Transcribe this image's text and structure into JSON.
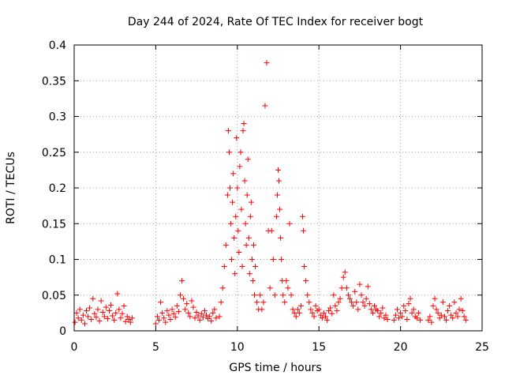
{
  "chart_data": {
    "type": "scatter",
    "title": "Day 244 of 2024, Rate Of TEC Index for receiver bogt",
    "xlabel": "GPS time / hours",
    "ylabel": "ROTI / TECUs",
    "xlim": [
      0,
      25
    ],
    "ylim": [
      0,
      0.4
    ],
    "grid": true,
    "marker": "+",
    "color": "#ff0000",
    "x_ticks": [
      "0",
      "5",
      "10",
      "15",
      "20",
      "25"
    ],
    "y_ticks": [
      "0",
      "0.05",
      "0.1",
      "0.15",
      "0.2",
      "0.25",
      "0.3",
      "0.35",
      "0.4"
    ],
    "x_tick_values": [
      0,
      5,
      10,
      15,
      20,
      25
    ],
    "y_tick_values": [
      0,
      0.05,
      0.1,
      0.15,
      0.2,
      0.25,
      0.3,
      0.35,
      0.4
    ],
    "series": [
      {
        "name": "ROTI",
        "points": [
          [
            0.05,
            0.012
          ],
          [
            0.15,
            0.025
          ],
          [
            0.25,
            0.018
          ],
          [
            0.35,
            0.03
          ],
          [
            0.45,
            0.015
          ],
          [
            0.55,
            0.022
          ],
          [
            0.65,
            0.01
          ],
          [
            0.75,
            0.028
          ],
          [
            0.85,
            0.02
          ],
          [
            0.95,
            0.032
          ],
          [
            1.05,
            0.016
          ],
          [
            1.15,
            0.045
          ],
          [
            1.25,
            0.024
          ],
          [
            1.35,
            0.019
          ],
          [
            1.45,
            0.03
          ],
          [
            1.55,
            0.014
          ],
          [
            1.65,
            0.042
          ],
          [
            1.75,
            0.026
          ],
          [
            1.85,
            0.02
          ],
          [
            1.95,
            0.033
          ],
          [
            2.05,
            0.017
          ],
          [
            2.15,
            0.028
          ],
          [
            2.25,
            0.036
          ],
          [
            2.35,
            0.021
          ],
          [
            2.45,
            0.015
          ],
          [
            2.55,
            0.025
          ],
          [
            2.65,
            0.052
          ],
          [
            2.75,
            0.03
          ],
          [
            2.85,
            0.018
          ],
          [
            2.95,
            0.024
          ],
          [
            3.05,
            0.035
          ],
          [
            3.15,
            0.013
          ],
          [
            3.25,
            0.02
          ],
          [
            3.35,
            0.016
          ],
          [
            3.45,
            0.012
          ],
          [
            3.55,
            0.018
          ],
          [
            5.0,
            0.01
          ],
          [
            5.1,
            0.02
          ],
          [
            5.2,
            0.015
          ],
          [
            5.3,
            0.04
          ],
          [
            5.4,
            0.025
          ],
          [
            5.5,
            0.018
          ],
          [
            5.6,
            0.012
          ],
          [
            5.7,
            0.028
          ],
          [
            5.8,
            0.022
          ],
          [
            5.9,
            0.016
          ],
          [
            6.0,
            0.03
          ],
          [
            6.1,
            0.024
          ],
          [
            6.2,
            0.019
          ],
          [
            6.3,
            0.035
          ],
          [
            6.4,
            0.027
          ],
          [
            6.5,
            0.05
          ],
          [
            6.6,
            0.07
          ],
          [
            6.7,
            0.045
          ],
          [
            6.8,
            0.03
          ],
          [
            6.9,
            0.038
          ],
          [
            7.0,
            0.025
          ],
          [
            7.1,
            0.02
          ],
          [
            7.2,
            0.042
          ],
          [
            7.3,
            0.033
          ],
          [
            7.4,
            0.018
          ],
          [
            7.5,
            0.026
          ],
          [
            7.6,
            0.021
          ],
          [
            7.7,
            0.015
          ],
          [
            7.8,
            0.024
          ],
          [
            7.9,
            0.019
          ],
          [
            8.0,
            0.028
          ],
          [
            8.1,
            0.022
          ],
          [
            8.2,
            0.017
          ],
          [
            8.3,
            0.02
          ],
          [
            8.4,
            0.014
          ],
          [
            8.5,
            0.025
          ],
          [
            8.6,
            0.03
          ],
          [
            8.7,
            0.018
          ],
          [
            8.9,
            0.02
          ],
          [
            9.0,
            0.04
          ],
          [
            9.1,
            0.06
          ],
          [
            9.2,
            0.09
          ],
          [
            9.3,
            0.12
          ],
          [
            9.4,
            0.19
          ],
          [
            9.45,
            0.28
          ],
          [
            9.5,
            0.25
          ],
          [
            9.55,
            0.2
          ],
          [
            9.6,
            0.15
          ],
          [
            9.65,
            0.1
          ],
          [
            9.7,
            0.18
          ],
          [
            9.75,
            0.22
          ],
          [
            9.8,
            0.13
          ],
          [
            9.85,
            0.08
          ],
          [
            9.9,
            0.16
          ],
          [
            9.95,
            0.27
          ],
          [
            10.0,
            0.2
          ],
          [
            10.05,
            0.14
          ],
          [
            10.1,
            0.11
          ],
          [
            10.15,
            0.23
          ],
          [
            10.2,
            0.25
          ],
          [
            10.25,
            0.17
          ],
          [
            10.3,
            0.09
          ],
          [
            10.35,
            0.28
          ],
          [
            10.4,
            0.29
          ],
          [
            10.45,
            0.21
          ],
          [
            10.5,
            0.15
          ],
          [
            10.55,
            0.12
          ],
          [
            10.6,
            0.19
          ],
          [
            10.65,
            0.24
          ],
          [
            10.7,
            0.13
          ],
          [
            10.75,
            0.08
          ],
          [
            10.8,
            0.16
          ],
          [
            10.85,
            0.18
          ],
          [
            10.9,
            0.1
          ],
          [
            10.95,
            0.07
          ],
          [
            11.0,
            0.12
          ],
          [
            11.05,
            0.05
          ],
          [
            11.1,
            0.09
          ],
          [
            11.2,
            0.04
          ],
          [
            11.3,
            0.03
          ],
          [
            11.4,
            0.05
          ],
          [
            11.5,
            0.03
          ],
          [
            11.6,
            0.04
          ],
          [
            11.7,
            0.315
          ],
          [
            11.8,
            0.375
          ],
          [
            11.9,
            0.14
          ],
          [
            12.0,
            0.06
          ],
          [
            12.1,
            0.14
          ],
          [
            12.2,
            0.1
          ],
          [
            12.3,
            0.05
          ],
          [
            12.4,
            0.16
          ],
          [
            12.45,
            0.19
          ],
          [
            12.5,
            0.225
          ],
          [
            12.55,
            0.21
          ],
          [
            12.6,
            0.17
          ],
          [
            12.65,
            0.13
          ],
          [
            12.7,
            0.1
          ],
          [
            12.75,
            0.07
          ],
          [
            12.8,
            0.05
          ],
          [
            12.9,
            0.04
          ],
          [
            13.0,
            0.07
          ],
          [
            13.1,
            0.06
          ],
          [
            13.2,
            0.15
          ],
          [
            13.3,
            0.05
          ],
          [
            13.4,
            0.03
          ],
          [
            13.5,
            0.025
          ],
          [
            13.6,
            0.02
          ],
          [
            13.7,
            0.03
          ],
          [
            13.8,
            0.025
          ],
          [
            13.9,
            0.035
          ],
          [
            14.0,
            0.16
          ],
          [
            14.05,
            0.14
          ],
          [
            14.1,
            0.09
          ],
          [
            14.2,
            0.07
          ],
          [
            14.3,
            0.05
          ],
          [
            14.4,
            0.04
          ],
          [
            14.5,
            0.03
          ],
          [
            14.6,
            0.025
          ],
          [
            14.7,
            0.02
          ],
          [
            14.8,
            0.035
          ],
          [
            14.9,
            0.028
          ],
          [
            15.0,
            0.03
          ],
          [
            15.1,
            0.022
          ],
          [
            15.2,
            0.018
          ],
          [
            15.3,
            0.025
          ],
          [
            15.4,
            0.02
          ],
          [
            15.5,
            0.015
          ],
          [
            15.6,
            0.028
          ],
          [
            15.7,
            0.032
          ],
          [
            15.8,
            0.024
          ],
          [
            15.9,
            0.05
          ],
          [
            16.0,
            0.035
          ],
          [
            16.1,
            0.028
          ],
          [
            16.2,
            0.04
          ],
          [
            16.3,
            0.045
          ],
          [
            16.4,
            0.06
          ],
          [
            16.5,
            0.075
          ],
          [
            16.6,
            0.082
          ],
          [
            16.7,
            0.06
          ],
          [
            16.8,
            0.05
          ],
          [
            16.9,
            0.045
          ],
          [
            17.0,
            0.04
          ],
          [
            17.1,
            0.035
          ],
          [
            17.2,
            0.055
          ],
          [
            17.3,
            0.04
          ],
          [
            17.4,
            0.03
          ],
          [
            17.5,
            0.065
          ],
          [
            17.6,
            0.05
          ],
          [
            17.7,
            0.04
          ],
          [
            17.8,
            0.035
          ],
          [
            17.9,
            0.045
          ],
          [
            18.0,
            0.062
          ],
          [
            18.1,
            0.038
          ],
          [
            18.2,
            0.03
          ],
          [
            18.3,
            0.025
          ],
          [
            18.4,
            0.035
          ],
          [
            18.5,
            0.03
          ],
          [
            18.6,
            0.028
          ],
          [
            18.7,
            0.02
          ],
          [
            18.8,
            0.025
          ],
          [
            18.9,
            0.032
          ],
          [
            19.0,
            0.018
          ],
          [
            19.1,
            0.022
          ],
          [
            19.2,
            0.016
          ],
          [
            19.6,
            0.015
          ],
          [
            19.7,
            0.022
          ],
          [
            19.8,
            0.03
          ],
          [
            19.9,
            0.018
          ],
          [
            20.0,
            0.025
          ],
          [
            20.1,
            0.02
          ],
          [
            20.2,
            0.035
          ],
          [
            20.3,
            0.028
          ],
          [
            20.4,
            0.016
          ],
          [
            20.5,
            0.038
          ],
          [
            20.6,
            0.045
          ],
          [
            20.7,
            0.025
          ],
          [
            20.8,
            0.03
          ],
          [
            20.9,
            0.02
          ],
          [
            21.0,
            0.018
          ],
          [
            21.1,
            0.025
          ],
          [
            21.2,
            0.015
          ],
          [
            21.7,
            0.015
          ],
          [
            21.8,
            0.02
          ],
          [
            21.9,
            0.012
          ],
          [
            22.0,
            0.035
          ],
          [
            22.1,
            0.045
          ],
          [
            22.2,
            0.03
          ],
          [
            22.3,
            0.025
          ],
          [
            22.4,
            0.018
          ],
          [
            22.5,
            0.022
          ],
          [
            22.6,
            0.04
          ],
          [
            22.7,
            0.02
          ],
          [
            22.8,
            0.015
          ],
          [
            22.9,
            0.028
          ],
          [
            23.0,
            0.035
          ],
          [
            23.1,
            0.022
          ],
          [
            23.2,
            0.018
          ],
          [
            23.3,
            0.04
          ],
          [
            23.4,
            0.025
          ],
          [
            23.5,
            0.02
          ],
          [
            23.6,
            0.03
          ],
          [
            23.7,
            0.045
          ],
          [
            23.8,
            0.028
          ],
          [
            23.9,
            0.02
          ],
          [
            24.0,
            0.015
          ]
        ]
      }
    ]
  }
}
